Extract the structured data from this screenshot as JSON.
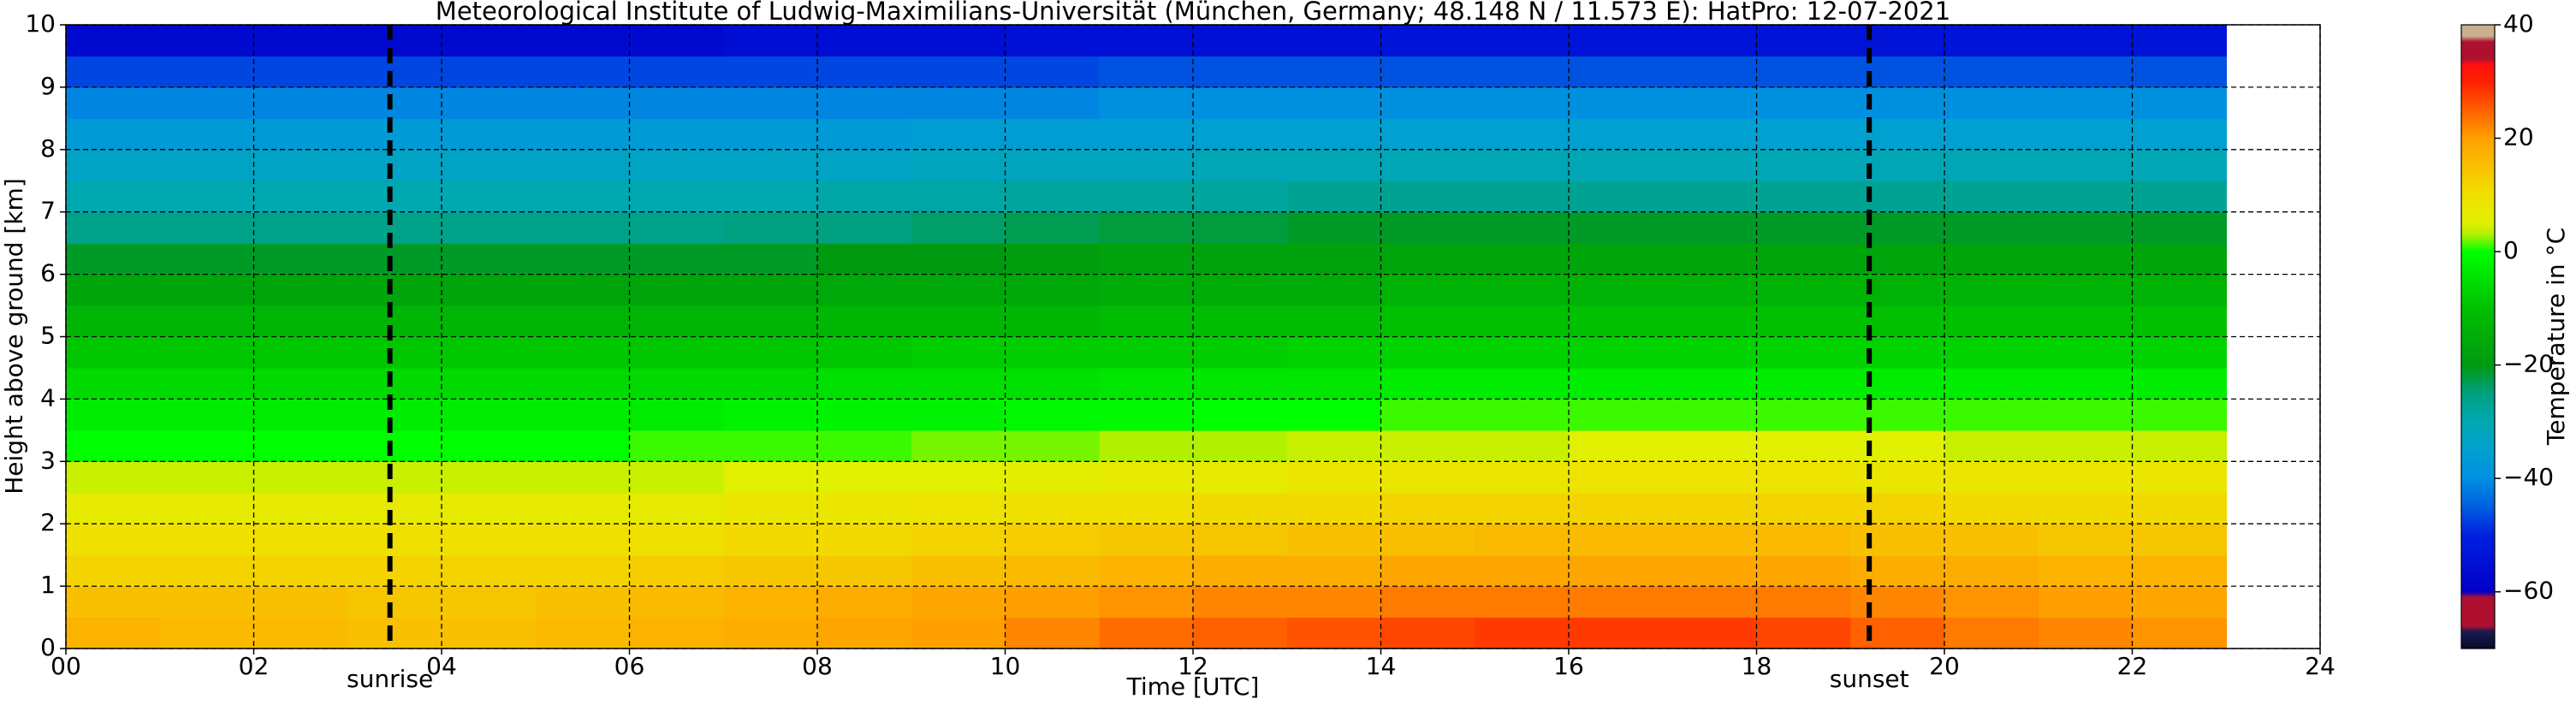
{
  "chart_data": {
    "type": "heatmap",
    "title": "Meteorological Institute of Ludwig-Maximilians-Universität (München, Germany; 48.148 N / 11.573 E):    HatPro: 12-07-2021",
    "x_label": "Time [UTC]",
    "y_label": "Height above ground [km]",
    "colorbar_label": "Temperature in °C",
    "xlim": [
      0,
      24
    ],
    "ylim": [
      0,
      10
    ],
    "xticks": [
      {
        "value": 0,
        "label": "00"
      },
      {
        "value": 2,
        "label": "02"
      },
      {
        "value": 4,
        "label": "04"
      },
      {
        "value": 6,
        "label": "06"
      },
      {
        "value": 8,
        "label": "08"
      },
      10,
      12,
      14,
      16,
      18,
      20,
      22,
      24
    ],
    "yticks": [
      0,
      1,
      2,
      3,
      4,
      5,
      6,
      7,
      8,
      9,
      10
    ],
    "grid": true,
    "clim": [
      -70,
      40
    ],
    "cticks": [
      {
        "value": -60,
        "label": "−60"
      },
      {
        "value": -40,
        "label": "−40"
      },
      {
        "value": -20,
        "label": "−20"
      },
      0,
      20,
      40
    ],
    "colormap": [
      {
        "value": -70,
        "color": "#0a0a2a"
      },
      {
        "value": -67,
        "color": "#1a1a50"
      },
      {
        "value": -66,
        "color": "#b01030"
      },
      {
        "value": -61,
        "color": "#b01030"
      },
      {
        "value": -60,
        "color": "#0000c8"
      },
      {
        "value": -50,
        "color": "#0020e0"
      },
      {
        "value": -45,
        "color": "#0060e0"
      },
      {
        "value": -40,
        "color": "#0090e0"
      },
      {
        "value": -35,
        "color": "#00a0d0"
      },
      {
        "value": -30,
        "color": "#00a8b0"
      },
      {
        "value": -25,
        "color": "#00a080"
      },
      {
        "value": -20,
        "color": "#009a10"
      },
      {
        "value": -10,
        "color": "#00c000"
      },
      {
        "value": -5,
        "color": "#00e000"
      },
      {
        "value": 0,
        "color": "#00ff00"
      },
      {
        "value": 3,
        "color": "#b0f000"
      },
      {
        "value": 5,
        "color": "#e0f000"
      },
      {
        "value": 10,
        "color": "#f0e000"
      },
      {
        "value": 15,
        "color": "#f8c000"
      },
      {
        "value": 20,
        "color": "#ffa000"
      },
      {
        "value": 25,
        "color": "#ff6000"
      },
      {
        "value": 30,
        "color": "#ff2000"
      },
      {
        "value": 33,
        "color": "#ff1010"
      },
      {
        "value": 34,
        "color": "#b01030"
      },
      {
        "value": 37,
        "color": "#b01030"
      },
      {
        "value": 38,
        "color": "#c8b090"
      },
      {
        "value": 40,
        "color": "#c8b090"
      }
    ],
    "x_edges": [
      0,
      1,
      2,
      3,
      4,
      5,
      6,
      7,
      8,
      9,
      10,
      11,
      12,
      13,
      14,
      15,
      16,
      17,
      18,
      19,
      20,
      21,
      22,
      23
    ],
    "y_edges": [
      0,
      0.5,
      1,
      1.5,
      2,
      2.5,
      3,
      3.5,
      4,
      4.5,
      5,
      5.5,
      6,
      6.5,
      7,
      7.5,
      8,
      8.5,
      9,
      9.5,
      10
    ],
    "z": [
      [
        17,
        16,
        16,
        15,
        15,
        16,
        17,
        18,
        19,
        20,
        22,
        24,
        25,
        26,
        27,
        28,
        28,
        28,
        27,
        25,
        23,
        22,
        21
      ],
      [
        15,
        15,
        15,
        14,
        14,
        15,
        16,
        17,
        18,
        19,
        20,
        21,
        22,
        22,
        23,
        23,
        23,
        23,
        23,
        22,
        21,
        20,
        19
      ],
      [
        12,
        12,
        12,
        12,
        12,
        12,
        13,
        14,
        14,
        15,
        16,
        17,
        18,
        18,
        19,
        19,
        19,
        19,
        19,
        18,
        18,
        17,
        17
      ],
      [
        10,
        10,
        10,
        10,
        10,
        10,
        10,
        11,
        11,
        12,
        13,
        14,
        14,
        15,
        15,
        16,
        16,
        16,
        16,
        15,
        15,
        14,
        14
      ],
      [
        7,
        7,
        7,
        7,
        7,
        7,
        7,
        8,
        8,
        9,
        10,
        10,
        11,
        11,
        12,
        12,
        12,
        12,
        12,
        12,
        11,
        11,
        11
      ],
      [
        4,
        4,
        4,
        4,
        4,
        4,
        4,
        5,
        5,
        5,
        6,
        7,
        7,
        8,
        8,
        8,
        9,
        9,
        9,
        8,
        8,
        8,
        8
      ],
      [
        0,
        0,
        0,
        0,
        0,
        0,
        1,
        1,
        1,
        2,
        2,
        3,
        3,
        4,
        4,
        4,
        5,
        5,
        5,
        5,
        4,
        4,
        4
      ],
      [
        -3,
        -3,
        -3,
        -3,
        -3,
        -3,
        -3,
        -2,
        -2,
        -2,
        -1,
        -1,
        0,
        0,
        1,
        1,
        1,
        1,
        1,
        1,
        1,
        1,
        1
      ],
      [
        -6,
        -6,
        -6,
        -6,
        -6,
        -6,
        -6,
        -6,
        -5,
        -5,
        -5,
        -4,
        -4,
        -4,
        -3,
        -3,
        -3,
        -3,
        -3,
        -3,
        -3,
        -3,
        -3
      ],
      [
        -9,
        -9,
        -9,
        -9,
        -9,
        -9,
        -9,
        -9,
        -9,
        -8,
        -8,
        -8,
        -8,
        -7,
        -7,
        -7,
        -7,
        -7,
        -7,
        -7,
        -7,
        -7,
        -7
      ],
      [
        -13,
        -13,
        -13,
        -13,
        -13,
        -13,
        -13,
        -13,
        -12,
        -12,
        -12,
        -11,
        -11,
        -11,
        -10,
        -10,
        -10,
        -10,
        -10,
        -10,
        -10,
        -10,
        -10
      ],
      [
        -17,
        -17,
        -17,
        -17,
        -17,
        -17,
        -17,
        -17,
        -16,
        -16,
        -16,
        -15,
        -15,
        -15,
        -14,
        -14,
        -14,
        -14,
        -14,
        -14,
        -14,
        -14,
        -14
      ],
      [
        -21,
        -21,
        -21,
        -21,
        -21,
        -21,
        -21,
        -21,
        -20,
        -20,
        -19,
        -18,
        -18,
        -18,
        -17,
        -17,
        -17,
        -17,
        -17,
        -17,
        -17,
        -17,
        -17
      ],
      [
        -26,
        -26,
        -26,
        -26,
        -26,
        -26,
        -26,
        -25,
        -25,
        -24,
        -23,
        -22,
        -22,
        -21,
        -21,
        -21,
        -21,
        -21,
        -21,
        -21,
        -21,
        -21,
        -21
      ],
      [
        -30,
        -30,
        -30,
        -30,
        -30,
        -30,
        -30,
        -30,
        -29,
        -29,
        -28,
        -28,
        -28,
        -27,
        -27,
        -27,
        -27,
        -27,
        -27,
        -27,
        -27,
        -27,
        -27
      ],
      [
        -33,
        -33,
        -33,
        -33,
        -33,
        -33,
        -33,
        -33,
        -33,
        -32,
        -32,
        -32,
        -31,
        -31,
        -31,
        -31,
        -31,
        -31,
        -31,
        -31,
        -31,
        -31,
        -31
      ],
      [
        -37,
        -37,
        -37,
        -37,
        -37,
        -37,
        -37,
        -37,
        -37,
        -36,
        -36,
        -36,
        -35,
        -35,
        -35,
        -35,
        -35,
        -35,
        -35,
        -35,
        -35,
        -35,
        -35
      ],
      [
        -41,
        -41,
        -41,
        -41,
        -41,
        -41,
        -41,
        -41,
        -41,
        -41,
        -41,
        -40,
        -40,
        -40,
        -40,
        -40,
        -40,
        -40,
        -40,
        -40,
        -40,
        -40,
        -40
      ],
      [
        -47,
        -47,
        -47,
        -47,
        -47,
        -47,
        -47,
        -47,
        -47,
        -47,
        -47,
        -46,
        -46,
        -46,
        -46,
        -46,
        -46,
        -46,
        -46,
        -46,
        -46,
        -46,
        -46
      ],
      [
        -57,
        -57,
        -57,
        -57,
        -57,
        -57,
        -57,
        -56,
        -56,
        -56,
        -55,
        -55,
        -55,
        -55,
        -54,
        -54,
        -54,
        -54,
        -54,
        -54,
        -54,
        -54,
        -54
      ]
    ],
    "annotations": [
      {
        "text": "sunrise",
        "x": 3.45
      },
      {
        "text": "sunset",
        "x": 19.2
      }
    ]
  }
}
